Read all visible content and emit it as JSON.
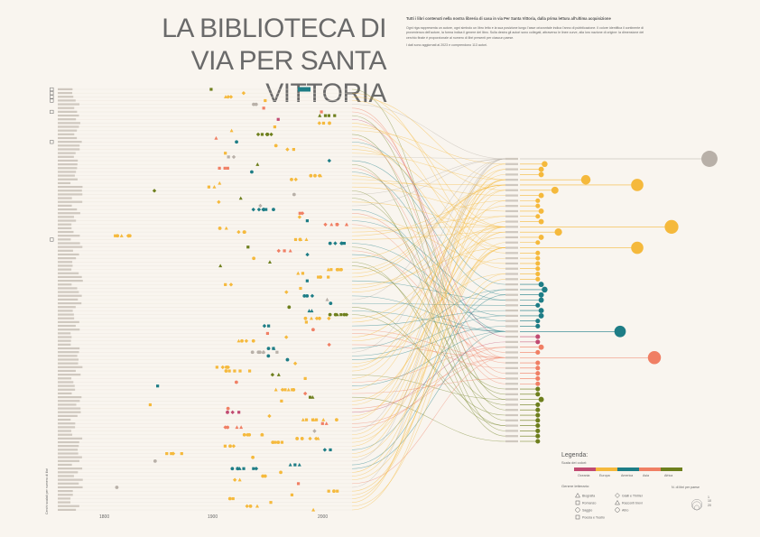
{
  "header": {
    "title_line1": "LA BIBLIOTECA DI",
    "title_line2": "VIA PER SANTA VITTORIA",
    "intro_lead": "Tutti i libri contenuti nella nostra libreria di casa in via Per Santa Vittoria, dalla prima lettura all'ultima acquisizione",
    "intro_body": "Ogni riga rappresenta un autore, ogni simbolo un libro letto e la sua posizione lungo l'asse orizzontale indica l'anno di pubblicazione. Il colore identifica il continente di provenienza dell'autore, la forma indica il genere del libro. Sulla destra gli autori sono collegati, attraverso le linee curve, alla loro nazione di origine: la dimensione del cerchio finale è proporzionale al numero di libri presenti per ciascun paese.",
    "intro_note": "I dati sono aggiornati al 2023 e comprendono 113 autori."
  },
  "colors": {
    "europa": "#f5b93c",
    "america": "#1e7d86",
    "oceania": "#c14b72",
    "asia": "#f07f64",
    "africa": "#6e7f1d",
    "italia": "#b8b0a8"
  },
  "axis": {
    "years": [
      "1800",
      "1900",
      "2000"
    ],
    "side_label": "Cerchi scalati per numero di libri"
  },
  "legend": {
    "title": "Legenda:",
    "scale_label": "Scala dei colori:",
    "continents": [
      "Oceania",
      "Europa",
      "America",
      "Asia",
      "Africa"
    ],
    "genre_label": "Genere letterario:",
    "genres": [
      "Biografia",
      "Romanzo",
      "Saggio",
      "Gialli e Thriller",
      "Racconti brevi",
      "Poesia e Teatro",
      "Altro"
    ],
    "size_label": "N. di libri per paese",
    "size_values": [
      "1",
      "10",
      "20"
    ]
  },
  "chart_data": {
    "type": "dot plot with flow links",
    "x_axis": "anno di pubblicazione",
    "xlim": [
      1800,
      2023
    ],
    "authors_count": 113,
    "countries": [
      {
        "name": "Italia",
        "continent": "italia",
        "books": 60
      },
      {
        "name": "Irlanda",
        "continent": "europa",
        "books": 3
      },
      {
        "name": "Regno Unito",
        "continent": "europa",
        "books": 2
      },
      {
        "name": "Austria",
        "continent": "europa",
        "books": 2
      },
      {
        "name": "Germania",
        "continent": "europa",
        "books": 15
      },
      {
        "name": "Inghilterra",
        "continent": "europa",
        "books": 30
      },
      {
        "name": "Francia",
        "continent": "europa",
        "books": 6
      },
      {
        "name": "Svizzera",
        "continent": "europa",
        "books": 2
      },
      {
        "name": "Polonia",
        "continent": "europa",
        "books": 1
      },
      {
        "name": "Belgio",
        "continent": "europa",
        "books": 1
      },
      {
        "name": "Spagna",
        "continent": "europa",
        "books": 2
      },
      {
        "name": "Repubblica Ceca",
        "continent": "europa",
        "books": 1
      },
      {
        "name": "Norvegia",
        "continent": "europa",
        "books": 2
      },
      {
        "name": "Russia",
        "continent": "europa",
        "books": 40
      },
      {
        "name": "Svezia",
        "continent": "europa",
        "books": 7
      },
      {
        "name": "Olanda",
        "continent": "europa",
        "books": 2
      },
      {
        "name": "Grecia",
        "continent": "europa",
        "books": 1
      },
      {
        "name": "Portogallo",
        "continent": "europa",
        "books": 30
      },
      {
        "name": "Danimarca",
        "continent": "europa",
        "books": 1
      },
      {
        "name": "Ungheria",
        "continent": "europa",
        "books": 1
      },
      {
        "name": "Croazia",
        "continent": "europa",
        "books": 1
      },
      {
        "name": "Romania",
        "continent": "europa",
        "books": 1
      },
      {
        "name": "Slovenia",
        "continent": "europa",
        "books": 1
      },
      {
        "name": "Bosnia",
        "continent": "europa",
        "books": 1
      },
      {
        "name": "Canada",
        "continent": "america",
        "books": 2
      },
      {
        "name": "Cile",
        "continent": "america",
        "books": 3
      },
      {
        "name": "Argentina",
        "continent": "america",
        "books": 2
      },
      {
        "name": "Brasile",
        "continent": "america",
        "books": 2
      },
      {
        "name": "Colombia",
        "continent": "america",
        "books": 1
      },
      {
        "name": "Messico",
        "continent": "america",
        "books": 2
      },
      {
        "name": "Perù",
        "continent": "america",
        "books": 2
      },
      {
        "name": "Uruguay",
        "continent": "america",
        "books": 1
      },
      {
        "name": "Cuba",
        "continent": "america",
        "books": 1
      },
      {
        "name": "Stati Uniti",
        "continent": "america",
        "books": 25
      },
      {
        "name": "Australia",
        "continent": "oceania",
        "books": 1
      },
      {
        "name": "Nuova Zelanda",
        "continent": "oceania",
        "books": 1
      },
      {
        "name": "Giappone",
        "continent": "asia",
        "books": 2
      },
      {
        "name": "India",
        "continent": "asia",
        "books": 1
      },
      {
        "name": "Cina",
        "continent": "asia",
        "books": 35
      },
      {
        "name": "Israele",
        "continent": "asia",
        "books": 1
      },
      {
        "name": "Turchia",
        "continent": "asia",
        "books": 1
      },
      {
        "name": "Iran",
        "continent": "asia",
        "books": 1
      },
      {
        "name": "Libano",
        "continent": "asia",
        "books": 1
      },
      {
        "name": "Afghanistan",
        "continent": "asia",
        "books": 1
      },
      {
        "name": "Egitto",
        "continent": "africa",
        "books": 1
      },
      {
        "name": "Nigeria",
        "continent": "africa",
        "books": 1
      },
      {
        "name": "Sudafrica",
        "continent": "africa",
        "books": 2
      },
      {
        "name": "Marocco",
        "continent": "africa",
        "books": 1
      },
      {
        "name": "Algeria",
        "continent": "africa",
        "books": 1
      },
      {
        "name": "Kenya",
        "continent": "africa",
        "books": 1
      },
      {
        "name": "Senegal",
        "continent": "africa",
        "books": 1
      },
      {
        "name": "Somalia",
        "continent": "africa",
        "books": 1
      },
      {
        "name": "Mozambico",
        "continent": "africa",
        "books": 1
      },
      {
        "name": "Zimbabwe",
        "continent": "africa",
        "books": 1
      },
      {
        "name": "Libia",
        "continent": "africa",
        "books": 1
      }
    ]
  }
}
